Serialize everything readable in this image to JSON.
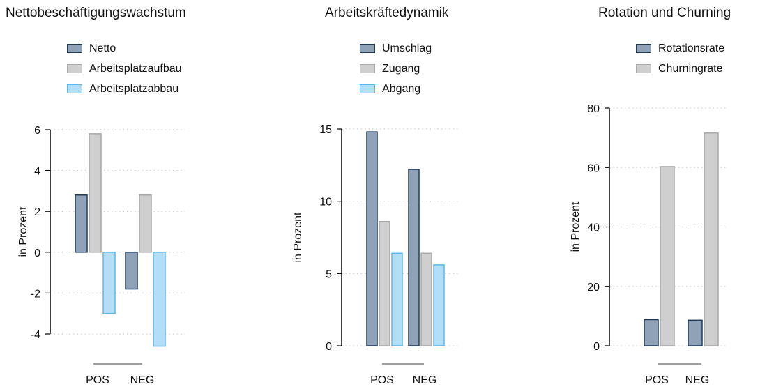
{
  "colors": {
    "dark_fill": "#8fa2b8",
    "dark_stroke": "#1f3a5c",
    "gray_fill": "#cfcfcf",
    "gray_stroke": "#a8a8a8",
    "blue_fill": "#b3def6",
    "blue_stroke": "#5fb7e8",
    "grid": "#c0c0c0",
    "axis": "#000000",
    "baseline_bar": "#a0a0a0"
  },
  "ylabel": "in Prozent",
  "chart_data": [
    {
      "type": "bar",
      "title": "Nettobeschäftigungswachstum",
      "xlabel": "",
      "ylabel": "in Prozent",
      "categories": [
        "POS",
        "NEG"
      ],
      "ylim": [
        -4,
        6
      ],
      "yticks": [
        "6",
        "4",
        "2",
        "0",
        "-2",
        "-4"
      ],
      "tick_values": [
        6,
        4,
        2,
        0,
        -2,
        -4
      ],
      "grid": true,
      "legend_position": "top",
      "series": [
        {
          "name": "Netto",
          "values": [
            2.8,
            -1.8
          ],
          "style": "dark"
        },
        {
          "name": "Arbeitsplatzaufbau",
          "values": [
            5.8,
            2.8
          ],
          "style": "gray"
        },
        {
          "name": "Arbeitsplatzabbau",
          "values": [
            -3.0,
            -4.6
          ],
          "style": "blue"
        }
      ]
    },
    {
      "type": "bar",
      "title": "Arbeitskräftedynamik",
      "xlabel": "",
      "ylabel": "in Prozent",
      "categories": [
        "POS",
        "NEG"
      ],
      "ylim": [
        0,
        15
      ],
      "yticks": [
        "15",
        "10",
        "5",
        "0"
      ],
      "tick_values": [
        15,
        10,
        5,
        0
      ],
      "grid": true,
      "legend_position": "top",
      "series": [
        {
          "name": "Umschlag",
          "values": [
            14.8,
            12.2
          ],
          "style": "dark"
        },
        {
          "name": "Zugang",
          "values": [
            8.6,
            6.4
          ],
          "style": "gray"
        },
        {
          "name": "Abgang",
          "values": [
            6.4,
            5.6
          ],
          "style": "blue"
        }
      ]
    },
    {
      "type": "bar",
      "title": "Rotation und Churning",
      "xlabel": "",
      "ylabel": "in Prozent",
      "categories": [
        "POS",
        "NEG"
      ],
      "ylim": [
        0,
        80
      ],
      "yticks": [
        "80",
        "60",
        "40",
        "20",
        "0"
      ],
      "tick_values": [
        80,
        60,
        40,
        20,
        0
      ],
      "grid": true,
      "legend_position": "top",
      "series": [
        {
          "name": "Rotationsrate",
          "values": [
            8.8,
            8.6
          ],
          "style": "dark"
        },
        {
          "name": "Churningrate",
          "values": [
            60.3,
            71.6
          ],
          "style": "gray"
        }
      ]
    }
  ]
}
